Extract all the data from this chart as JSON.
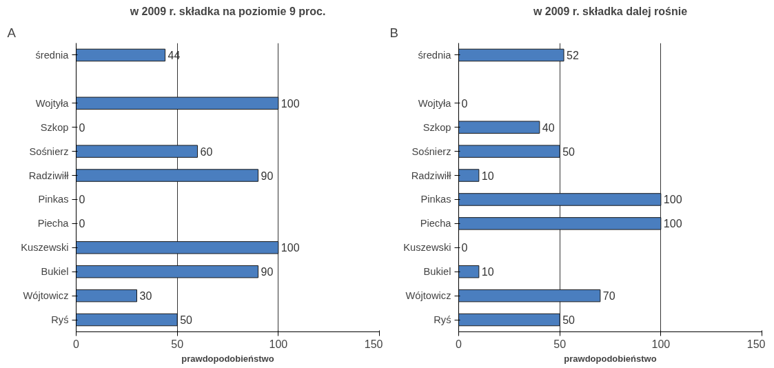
{
  "chart_data": [
    {
      "type": "bar",
      "orientation": "horizontal",
      "title": "w 2009 r. składka na poziomie 9 proc.",
      "xlabel": "prawdopodobieństwo",
      "annotations": [
        "A"
      ],
      "categories": [
        "średnia",
        null,
        "Wojtyła",
        "Szkop",
        "Sośnierz",
        "Radziwiłł",
        "Pinkas",
        "Piecha",
        "Kuszewski",
        "Bukiel",
        "Wójtowicz",
        "Ryś"
      ],
      "values": [
        44,
        null,
        100,
        0,
        60,
        90,
        0,
        0,
        100,
        90,
        30,
        50
      ],
      "color": "#4a7ebf",
      "xlim": [
        0,
        150
      ],
      "xticks": [
        0,
        50,
        100,
        150
      ],
      "grid": "x",
      "data_labels": true
    },
    {
      "type": "bar",
      "orientation": "horizontal",
      "title": "w 2009 r. składka dalej rośnie",
      "xlabel": "prawdopodobieństwo",
      "annotations": [
        "B"
      ],
      "categories": [
        "średnia",
        null,
        "Wojtyła",
        "Szkop",
        "Sośnierz",
        "Radziwiłł",
        "Pinkas",
        "Piecha",
        "Kuszewski",
        "Bukiel",
        "Wójtowicz",
        "Ryś"
      ],
      "values": [
        52,
        null,
        0,
        40,
        50,
        10,
        100,
        100,
        0,
        10,
        70,
        50
      ],
      "color": "#4a7ebf",
      "xlim": [
        0,
        150
      ],
      "xticks": [
        0,
        50,
        100,
        150
      ],
      "grid": "x",
      "data_labels": true
    }
  ]
}
